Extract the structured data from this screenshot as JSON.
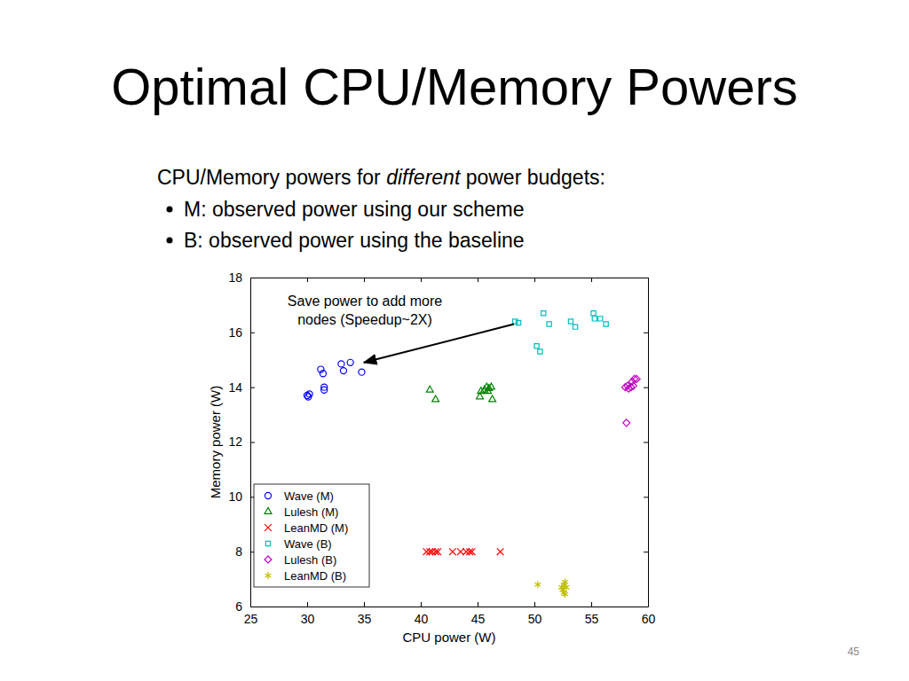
{
  "slide": {
    "title": "Optimal CPU/Memory Powers",
    "intro": [
      "CPU/Memory powers for ",
      "different",
      " power budgets:"
    ],
    "bullets": [
      "M: observed power using our scheme",
      "B: observed power using the baseline"
    ],
    "page": 45
  },
  "chart_data": {
    "type": "scatter",
    "x_label": "CPU power (W)",
    "y_label": "Memory power (W)",
    "xlim": [
      25,
      60
    ],
    "xticks": [
      25,
      30,
      35,
      40,
      45,
      50,
      55,
      60
    ],
    "ylim": [
      6,
      18
    ],
    "yticks": [
      6,
      8,
      10,
      12,
      14,
      16,
      18
    ],
    "grid": false,
    "legend": "lower left",
    "annotations": [
      {
        "text": [
          "Save power to add more",
          "nodes (Speedup~2X)"
        ],
        "xy": [
          35,
          14.9
        ],
        "arrow_from": [
          48.2,
          16.3
        ]
      }
    ],
    "series": [
      {
        "name": "Wave (M)",
        "color": "#0000ff",
        "marker": "circle",
        "x": [
          30,
          30.1,
          30.2,
          31.2,
          31.4,
          31.5,
          31.5,
          33,
          33.2,
          33.8,
          34.8
        ],
        "values": [
          13.7,
          13.65,
          13.75,
          14.65,
          14.5,
          13.9,
          14.0,
          14.85,
          14.6,
          14.9,
          14.55
        ]
      },
      {
        "name": "Lulesh (M)",
        "color": "#008000",
        "marker": "triangle",
        "x": [
          40.8,
          41.3,
          45.2,
          45.3,
          45.6,
          45.8,
          46,
          46.2,
          46.3,
          45.9
        ],
        "values": [
          13.9,
          13.55,
          13.65,
          13.85,
          13.9,
          14.0,
          13.95,
          14.0,
          13.55,
          13.85
        ]
      },
      {
        "name": "LeanMD (M)",
        "color": "#ff0000",
        "marker": "x",
        "x": [
          40.5,
          40.8,
          41,
          41.3,
          41.5,
          42.8,
          43.5,
          44,
          44.3,
          44.5,
          47
        ],
        "values": [
          8,
          8,
          8,
          8,
          8,
          8,
          8,
          8,
          8,
          8,
          8
        ]
      },
      {
        "name": "Wave (B)",
        "color": "#00bfbf",
        "marker": "square",
        "x": [
          48.3,
          48.6,
          50.2,
          50.5,
          50.8,
          51.3,
          53.2,
          53.6,
          55.2,
          55.3,
          55.8,
          56.3
        ],
        "values": [
          16.4,
          16.35,
          15.5,
          15.3,
          16.7,
          16.3,
          16.4,
          16.2,
          16.7,
          16.5,
          16.5,
          16.3
        ]
      },
      {
        "name": "Lulesh (B)",
        "color": "#bf00bf",
        "marker": "diamond",
        "x": [
          58,
          58.2,
          58.3,
          58.5,
          58.6,
          58.7,
          58.8,
          59,
          58.1
        ],
        "values": [
          14,
          14.05,
          13.95,
          14.0,
          14.2,
          14.05,
          14.3,
          14.3,
          12.7
        ]
      },
      {
        "name": "LeanMD (B)",
        "color": "#bfbf00",
        "marker": "star",
        "x": [
          50.3,
          52.4,
          52.5,
          52.6,
          52.7,
          52.8,
          52.6,
          52.7
        ],
        "values": [
          6.8,
          6.7,
          6.6,
          6.5,
          6.9,
          6.7,
          6.8,
          6.45
        ]
      }
    ]
  }
}
